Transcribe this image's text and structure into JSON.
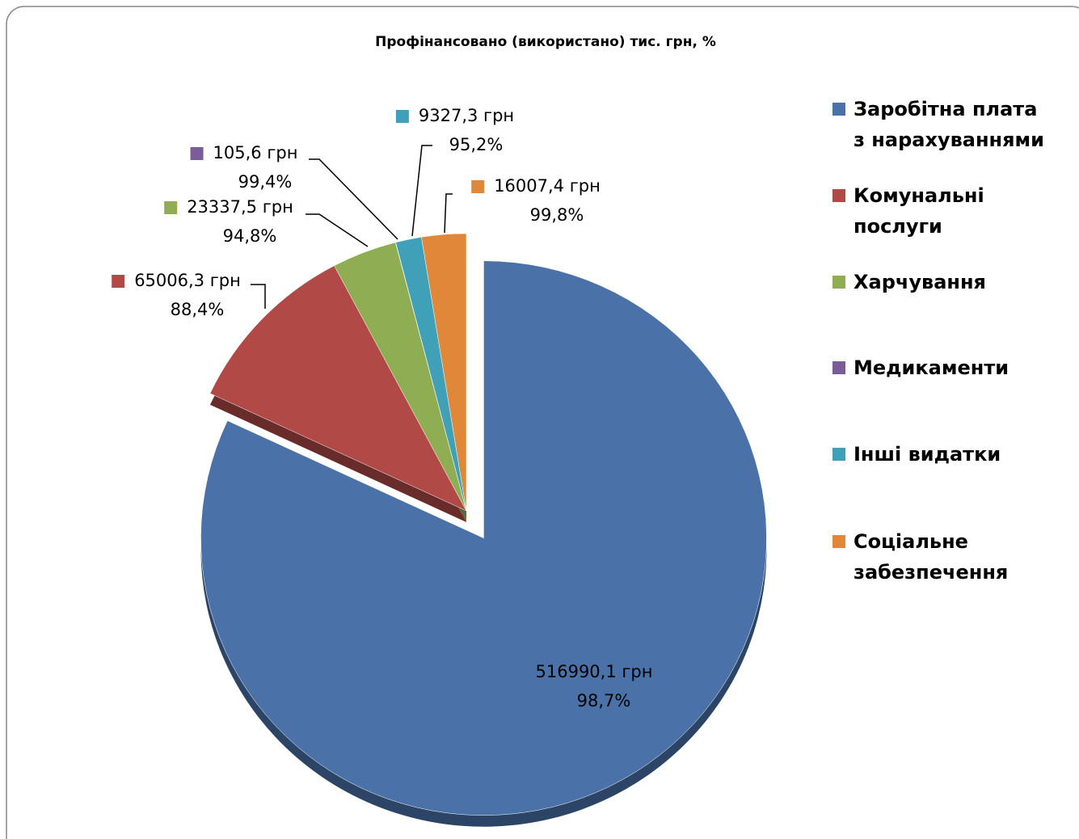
{
  "chart_data": {
    "type": "pie",
    "title": "Профінансовано (використано) тис. грн, %",
    "categories": [
      "Заробітна плата з нарахуваннями",
      "Комунальні послуги",
      "Харчування",
      "Медикаменти",
      "Інші видатки",
      "Соціальне забезпечення"
    ],
    "values": [
      516990.1,
      65006.3,
      23337.5,
      105.6,
      9327.3,
      16007.4
    ],
    "value_labels": [
      "516990,1 грн",
      "65006,3 грн",
      "23337,5 грн",
      "105,6 грн",
      "9327,3 грн",
      "16007,4 грн"
    ],
    "percents": [
      98.7,
      88.4,
      94.8,
      99.4,
      95.2,
      99.8
    ],
    "percent_labels": [
      "98,7%",
      "88,4%",
      "94,8%",
      "99,4%",
      "95,2%",
      "99,8%"
    ],
    "colors": [
      "#4a72a8",
      "#b14a47",
      "#8fad52",
      "#7a5c99",
      "#3fa0b8",
      "#e0873a"
    ],
    "legend": "right"
  }
}
